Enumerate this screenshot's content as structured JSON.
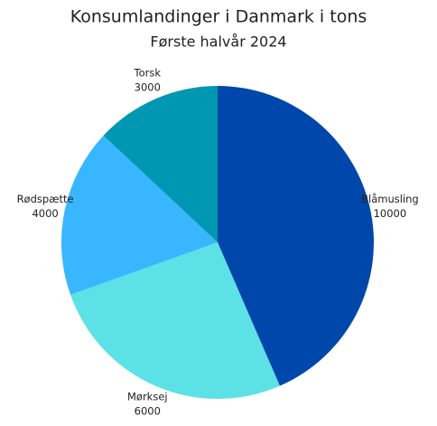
{
  "chart_data": {
    "type": "pie",
    "title": "Konsumlandinger i Danmark i tons",
    "subtitle": "Første halvår 2024",
    "categories": [
      "Blåmusling",
      "Mørksej",
      "Rødspætte",
      "Torsk"
    ],
    "values": [
      10000,
      6000,
      4000,
      3000
    ],
    "colors": [
      "#0047ab",
      "#5ce1e6",
      "#38b6ff",
      "#0097b2"
    ]
  }
}
